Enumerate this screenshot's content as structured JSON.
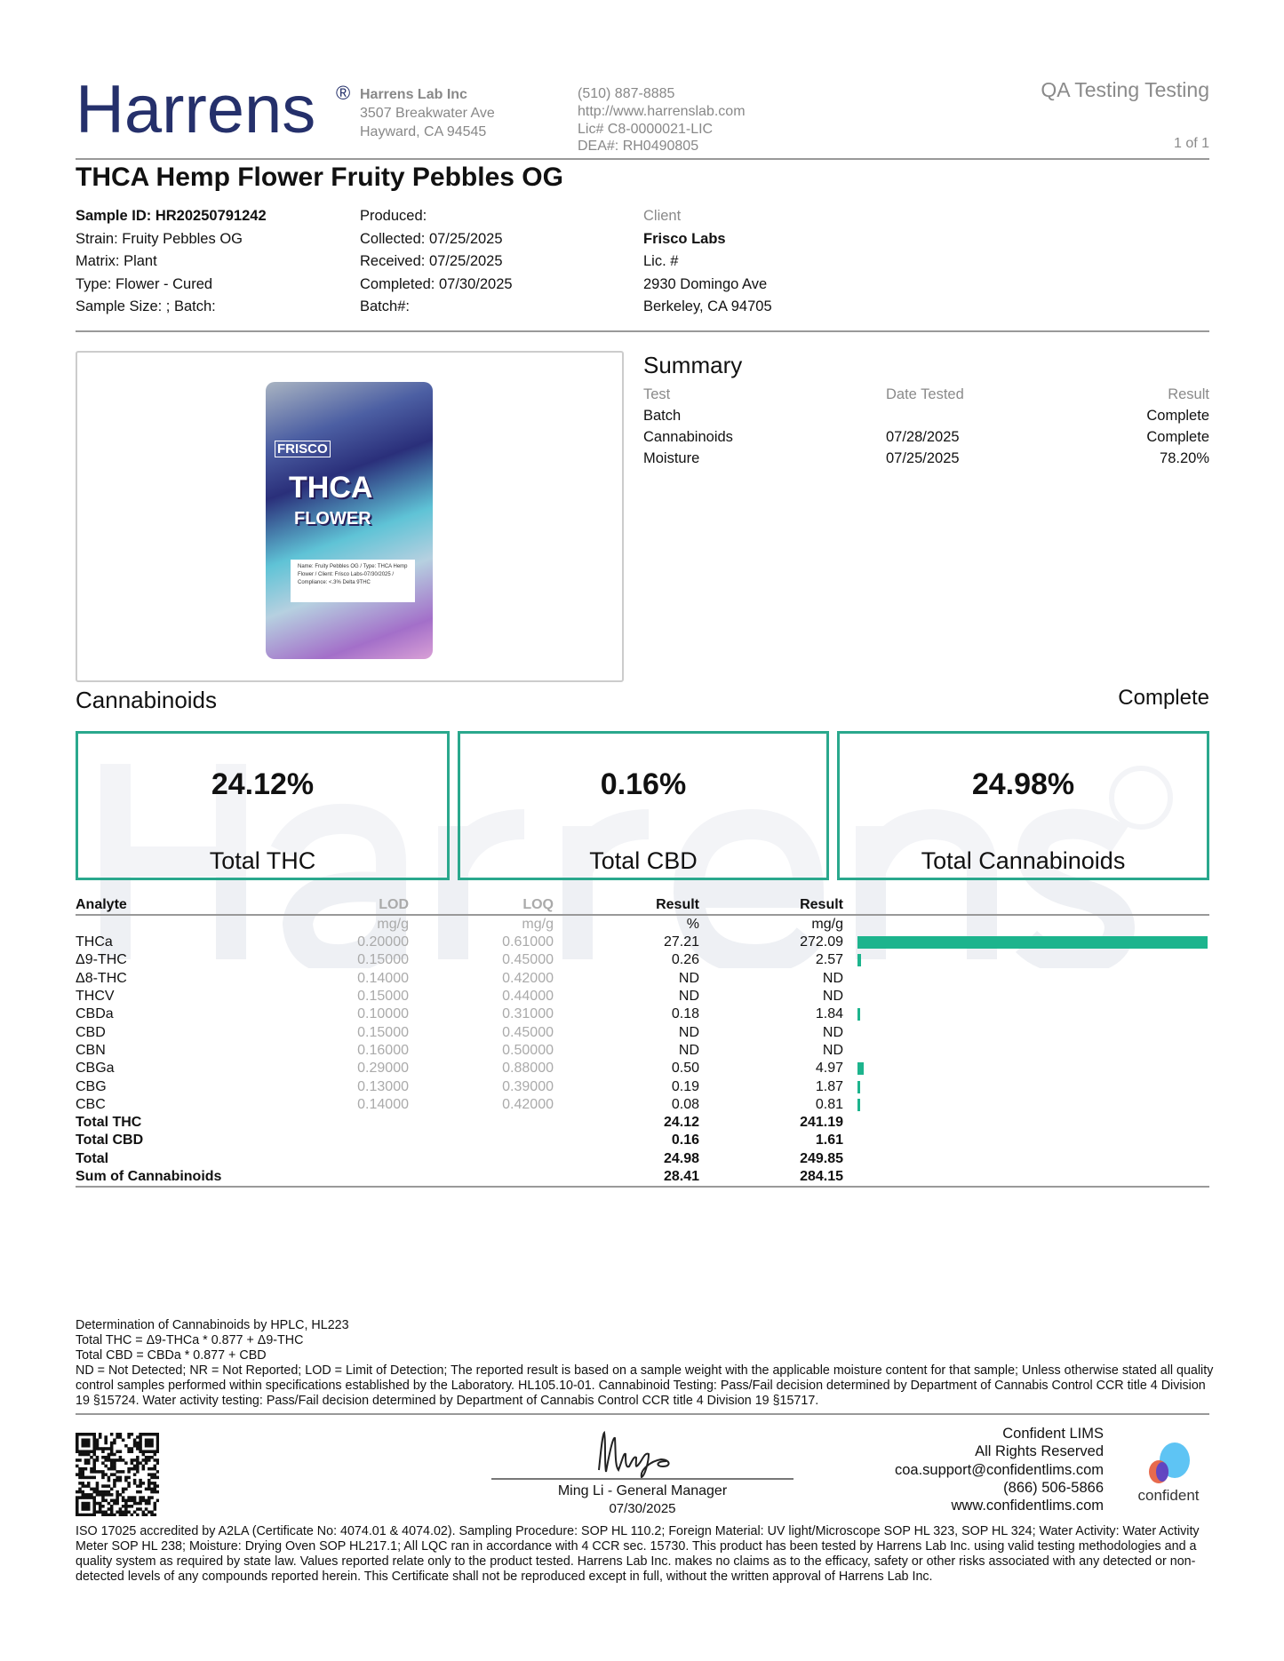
{
  "header": {
    "logo": "Harrens",
    "reg_mark": "®",
    "lab_name": "Harrens Lab Inc",
    "address1": "3507 Breakwater Ave",
    "address2": "Hayward, CA 94545",
    "phone": "(510) 887-8885",
    "website": "http://www.harrenslab.com",
    "license": "Lic# C8-0000021-LIC",
    "dea": "DEA#: RH0490805",
    "report_type": "QA Testing Testing",
    "page": "1 of 1"
  },
  "title": "THCA Hemp Flower Fruity Pebbles OG",
  "sample": {
    "id": "Sample ID: HR20250791242",
    "strain": "Strain: Fruity Pebbles OG",
    "matrix": "Matrix: Plant",
    "type": "Type: Flower - Cured",
    "size": "Sample Size: ; Batch:"
  },
  "dates": {
    "produced": "Produced:",
    "collected": "Collected: 07/25/2025",
    "received": "Received: 07/25/2025",
    "completed": "Completed: 07/30/2025",
    "batch": "Batch#:"
  },
  "client": {
    "label": "Client",
    "name": "Frisco Labs",
    "lic": "Lic. #",
    "address1": "2930 Domingo Ave",
    "address2": "Berkeley, CA 94705"
  },
  "product_image": {
    "brand": "FRISCO",
    "line1": "THCA",
    "line2": "FLOWER",
    "label": "Name: Fruity Pebbles OG / Type: THCA Hemp Flower / Client: Frisco Labs-07/30/2025 / Compliance: <.3% Delta 9THC"
  },
  "summary": {
    "title": "Summary",
    "headers": [
      "Test",
      "Date Tested",
      "Result"
    ],
    "rows": [
      [
        "Batch",
        "",
        "Complete"
      ],
      [
        "Cannabinoids",
        "07/28/2025",
        "Complete"
      ],
      [
        "Moisture",
        "07/25/2025",
        "78.20%"
      ]
    ]
  },
  "cannabinoids": {
    "title": "Cannabinoids",
    "status": "Complete",
    "watermark": "Harrens",
    "cards": [
      {
        "value": "24.12%",
        "label": "Total THC"
      },
      {
        "value": "0.16%",
        "label": "Total CBD"
      },
      {
        "value": "24.98%",
        "label": "Total Cannabinoids"
      }
    ],
    "headers": [
      "Analyte",
      "LOD",
      "LOQ",
      "Result",
      "Result"
    ],
    "units": [
      "",
      "mg/g",
      "mg/g",
      "%",
      "mg/g"
    ],
    "rows": [
      [
        "THCa",
        "0.20000",
        "0.61000",
        "27.21",
        "272.09"
      ],
      [
        "Δ9-THC",
        "0.15000",
        "0.45000",
        "0.26",
        "2.57"
      ],
      [
        "Δ8-THC",
        "0.14000",
        "0.42000",
        "ND",
        "ND"
      ],
      [
        "THCV",
        "0.15000",
        "0.44000",
        "ND",
        "ND"
      ],
      [
        "CBDa",
        "0.10000",
        "0.31000",
        "0.18",
        "1.84"
      ],
      [
        "CBD",
        "0.15000",
        "0.45000",
        "ND",
        "ND"
      ],
      [
        "CBN",
        "0.16000",
        "0.50000",
        "ND",
        "ND"
      ],
      [
        "CBGa",
        "0.29000",
        "0.88000",
        "0.50",
        "4.97"
      ],
      [
        "CBG",
        "0.13000",
        "0.39000",
        "0.19",
        "1.87"
      ],
      [
        "CBC",
        "0.14000",
        "0.42000",
        "0.08",
        "0.81"
      ]
    ],
    "totals": [
      [
        "Total THC",
        "24.12",
        "241.19"
      ],
      [
        "Total CBD",
        "0.16",
        "1.61"
      ],
      [
        "Total",
        "24.98",
        "249.85"
      ],
      [
        "Sum of Cannabinoids",
        "28.41",
        "284.15"
      ]
    ],
    "bar_color": "#1db48d"
  },
  "notes": [
    "Determination of Cannabinoids by HPLC, HL223",
    "Total THC = Δ9-THCa * 0.877 + Δ9-THC",
    "Total CBD = CBDa * 0.877 + CBD",
    "ND = Not Detected; NR = Not Reported; LOD = Limit of Detection; The reported result is based on a sample weight with the applicable moisture content for that sample; Unless otherwise stated all quality control samples performed within specifications established by the Laboratory. HL105.10-01. Cannabinoid Testing: Pass/Fail decision determined by Department of Cannabis Control CCR title 4 Division 19 §15724. Water activity testing: Pass/Fail decision determined by Department of Cannabis Control CCR title 4 Division 19 §15717."
  ],
  "signature": {
    "signature_text": "Ming Li",
    "name": "Ming Li - General Manager",
    "date": "07/30/2025"
  },
  "lims": {
    "lines": [
      "Confident LIMS",
      "All Rights Reserved",
      "coa.support@confidentlims.com",
      "(866) 506-5866",
      "www.confidentlims.com"
    ],
    "logo": "confident"
  },
  "iso": "ISO 17025 accredited by A2LA (Certificate No: 4074.01 & 4074.02). Sampling Procedure: SOP HL 110.2; Foreign Material: UV light/Microscope SOP HL 323, SOP HL 324; Water Activity: Water Activity Meter SOP HL 238; Moisture: Drying Oven SOP HL217.1; All LQC ran in accordance with 4 CCR sec. 15730. This product has been tested by Harrens Lab Inc. using valid testing methodologies and a quality system as required by state law. Values reported relate only to the product tested. Harrens Lab Inc. makes no claims as to the efficacy, safety or other risks associated with any detected or non-detected levels of any compounds reported herein. This Certificate shall not be reproduced except in full, without the written approval of Harrens Lab Inc."
}
